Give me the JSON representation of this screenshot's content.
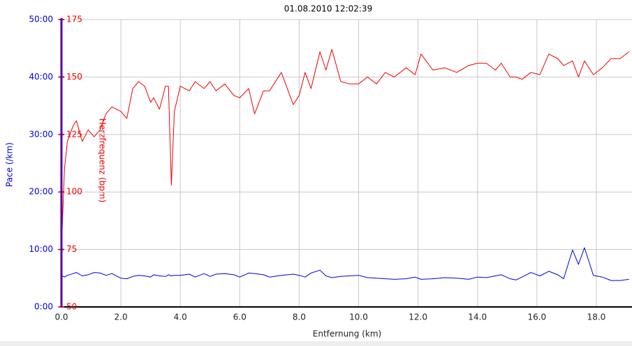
{
  "chart_data": {
    "type": "line",
    "title": "01.08.2010 12:02:39",
    "xlabel": "Entfernung (km)",
    "ylabel": "Pace (/km)",
    "y2label": "Herzfrequenz (bpm)",
    "x": [
      0,
      0.1,
      0.2,
      0.4,
      0.5,
      0.7,
      0.9,
      1.1,
      1.3,
      1.5,
      1.7,
      2.0,
      2.2,
      2.4,
      2.6,
      2.8,
      3.0,
      3.1,
      3.3,
      3.5,
      3.6,
      3.7,
      3.8,
      4.0,
      4.3,
      4.5,
      4.8,
      5.0,
      5.2,
      5.5,
      5.8,
      6.0,
      6.3,
      6.5,
      6.8,
      7.0,
      7.4,
      7.8,
      8.0,
      8.2,
      8.4,
      8.7,
      8.9,
      9.1,
      9.4,
      9.7,
      10.0,
      10.3,
      10.6,
      10.9,
      11.2,
      11.6,
      11.9,
      12.1,
      12.5,
      12.9,
      13.3,
      13.7,
      14.0,
      14.3,
      14.6,
      14.8,
      15.1,
      15.3,
      15.5,
      15.8,
      16.1,
      16.4,
      16.7,
      16.9,
      17.2,
      17.4,
      17.6,
      17.9,
      18.2,
      18.5,
      18.8,
      19.1
    ],
    "series": [
      {
        "color": "#0000dd",
        "values": [
          5.5,
          5.2,
          5.5,
          5.8,
          6,
          5.4,
          5.6,
          6,
          5.9,
          5.5,
          5.8,
          5,
          4.9,
          5.3,
          5.5,
          5.4,
          5.2,
          5.6,
          5.4,
          5.3,
          5.6,
          5.4,
          5.5,
          5.5,
          5.7,
          5.2,
          5.8,
          5.3,
          5.7,
          5.8,
          5.6,
          5.2,
          5.9,
          5.8,
          5.6,
          5.2,
          5.5,
          5.7,
          5.5,
          5.2,
          5.9,
          6.4,
          5.4,
          5.1,
          5.3,
          5.4,
          5.5,
          5.1,
          5.0,
          4.9,
          4.8,
          4.9,
          5.2,
          4.8,
          4.9,
          5.1,
          5.0,
          4.8,
          5.2,
          5.1,
          5.4,
          5.6,
          4.9,
          4.7,
          5.2,
          6.0,
          5.4,
          6.2,
          5.6,
          4.9,
          9.9,
          7.4,
          10.3,
          5.5,
          5.2,
          4.6,
          4.6,
          4.8
        ]
      },
      {
        "color": "#ee0000",
        "axis": "y2",
        "values": [
          75,
          110,
          122,
          129,
          131,
          122,
          127,
          124,
          127,
          134,
          137,
          135,
          132,
          145,
          148,
          146,
          139,
          141,
          136,
          146,
          146,
          103,
          135,
          146,
          144,
          148,
          145,
          148,
          144,
          147,
          142,
          141,
          145,
          134,
          144,
          144,
          152,
          138,
          142,
          152,
          145,
          161,
          153,
          162,
          148,
          147,
          147,
          150,
          147,
          152,
          150,
          154,
          151,
          160,
          153,
          154,
          152,
          155,
          156,
          156,
          153,
          156,
          150,
          150,
          149,
          152,
          151,
          160,
          158,
          155,
          157,
          150,
          157,
          151,
          154,
          158,
          158,
          161
        ]
      }
    ],
    "xlim": [
      0,
      19.2
    ],
    "xticks": [
      {
        "value": 0,
        "label": "0.0"
      },
      {
        "value": 2,
        "label": "2.0"
      },
      {
        "value": 4,
        "label": "4.0"
      },
      {
        "value": 6,
        "label": "6.0"
      },
      {
        "value": 8,
        "label": "8.0"
      },
      {
        "value": 10,
        "label": "10.0"
      },
      {
        "value": 12,
        "label": "12.0"
      },
      {
        "value": 14,
        "label": "14.0"
      },
      {
        "value": 16,
        "label": "16.0"
      },
      {
        "value": 18,
        "label": "18.0"
      }
    ],
    "ylim": [
      0,
      50
    ],
    "yticks": [
      {
        "value": 0,
        "label": "0:00"
      },
      {
        "value": 10,
        "label": "10:00"
      },
      {
        "value": 20,
        "label": "20:00"
      },
      {
        "value": 30,
        "label": "30:00"
      },
      {
        "value": 40,
        "label": "40:00"
      },
      {
        "value": 50,
        "label": "50:00"
      }
    ],
    "y2lim": [
      50,
      175
    ],
    "y2ticks": [
      50,
      75,
      100,
      125,
      150,
      175
    ],
    "grid": true
  }
}
